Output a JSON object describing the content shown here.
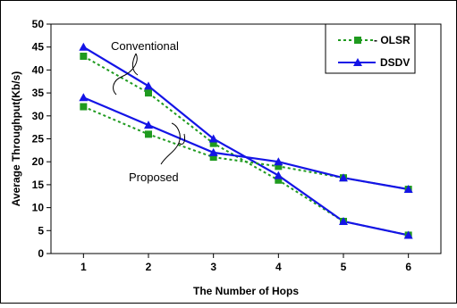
{
  "chart_data": {
    "type": "line",
    "xlabel": "The Number of Hops",
    "ylabel": "Average Throughput(Kb/s)",
    "x_ticks": [
      1,
      2,
      3,
      4,
      5,
      6
    ],
    "y_ticks": [
      0,
      5,
      10,
      15,
      20,
      25,
      30,
      35,
      40,
      45,
      50
    ],
    "xlim": [
      0.5,
      6.5
    ],
    "ylim": [
      0,
      50
    ],
    "grid": false,
    "legend_position": "top-right",
    "colors": {
      "olsr": "#1f9a1f",
      "dsdv": "#1414e6"
    },
    "series": [
      {
        "name": "OLSR",
        "group": "Conventional",
        "x": [
          1,
          2,
          3,
          4,
          5,
          6
        ],
        "y": [
          43,
          35,
          24,
          16,
          7,
          4
        ]
      },
      {
        "name": "DSDV",
        "group": "Conventional",
        "x": [
          1,
          2,
          3,
          4,
          5,
          6
        ],
        "y": [
          45,
          36.5,
          25,
          17,
          7,
          4
        ]
      },
      {
        "name": "OLSR",
        "group": "Proposed",
        "x": [
          1,
          2,
          3,
          4,
          5,
          6
        ],
        "y": [
          32,
          26,
          21,
          19,
          16.5,
          14
        ]
      },
      {
        "name": "DSDV",
        "group": "Proposed",
        "x": [
          1,
          2,
          3,
          4,
          5,
          6
        ],
        "y": [
          34,
          28,
          22,
          20,
          16.5,
          14
        ]
      }
    ],
    "legend": [
      {
        "label": "- OLSR",
        "series": "OLSR"
      },
      {
        "label": "DSDV",
        "series": "DSDV"
      }
    ],
    "annotations": [
      {
        "text": "Conventional"
      },
      {
        "text": "Proposed"
      }
    ]
  }
}
